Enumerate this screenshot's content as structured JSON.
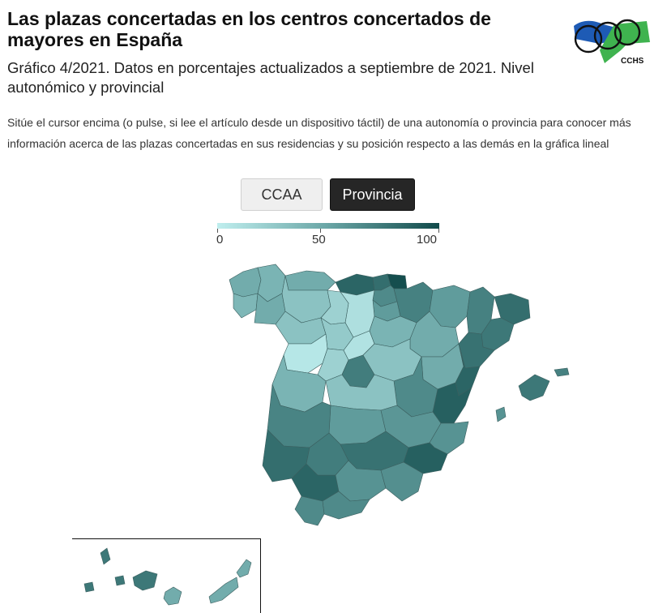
{
  "header": {
    "title": "Las plazas concertadas en los centros concertados de mayores en España",
    "subtitle": "Gráfico 4/2021. Datos en porcentajes actualizados a septiembre de 2021. Nivel autonómico y provincial",
    "description": "Sitúe el cursor encima (o pulse, si lee el artículo desde un dispositivo táctil) de una autonomía o provincia para conocer más información acerca de las plazas concertadas en sus residencias y su posición respecto a las demás en la gráfica lineal"
  },
  "logo": {
    "text": "CCHS",
    "colors": [
      "#1e5bb5",
      "#3fb34f",
      "#111111"
    ]
  },
  "toggle": {
    "options": [
      {
        "label": "CCAA",
        "selected": false
      },
      {
        "label": "Provincia",
        "selected": true
      }
    ]
  },
  "legend": {
    "min": 0,
    "max": 100,
    "ticks": [
      {
        "label": "0",
        "value": 0
      },
      {
        "label": "50",
        "value": 50
      },
      {
        "label": "100",
        "value": 100
      }
    ],
    "color_low": "#bfeeee",
    "color_mid": "#69a5a5",
    "color_high": "#114a4a"
  },
  "map": {
    "stroke_color": "#3b5f5f",
    "regions": [
      {
        "name": "A Coruña",
        "value": 45
      },
      {
        "name": "Lugo",
        "value": 40
      },
      {
        "name": "Pontevedra",
        "value": 38
      },
      {
        "name": "Ourense",
        "value": 45
      },
      {
        "name": "Asturias",
        "value": 45
      },
      {
        "name": "Cantabria",
        "value": 85
      },
      {
        "name": "Vizcaya",
        "value": 80
      },
      {
        "name": "Guipúzcoa",
        "value": 98
      },
      {
        "name": "Álava",
        "value": 65
      },
      {
        "name": "Navarra",
        "value": 70
      },
      {
        "name": "La Rioja",
        "value": 55
      },
      {
        "name": "Burgos",
        "value": 10
      },
      {
        "name": "León",
        "value": 30
      },
      {
        "name": "Palencia",
        "value": 20
      },
      {
        "name": "Zamora",
        "value": 30
      },
      {
        "name": "Valladolid",
        "value": 25
      },
      {
        "name": "Salamanca",
        "value": 5
      },
      {
        "name": "Ávila",
        "value": 20
      },
      {
        "name": "Segovia",
        "value": 8
      },
      {
        "name": "Soria",
        "value": 40
      },
      {
        "name": "Huesca",
        "value": 55
      },
      {
        "name": "Zaragoza",
        "value": 45
      },
      {
        "name": "Teruel",
        "value": 45
      },
      {
        "name": "Lleida",
        "value": 70
      },
      {
        "name": "Girona",
        "value": 80
      },
      {
        "name": "Barcelona",
        "value": 75
      },
      {
        "name": "Tarragona",
        "value": 78
      },
      {
        "name": "Castellón",
        "value": 85
      },
      {
        "name": "Valencia",
        "value": 88
      },
      {
        "name": "Alicante",
        "value": 60
      },
      {
        "name": "Madrid",
        "value": 72
      },
      {
        "name": "Guadalajara",
        "value": 30
      },
      {
        "name": "Cuenca",
        "value": 65
      },
      {
        "name": "Toledo",
        "value": 30
      },
      {
        "name": "Ciudad Real",
        "value": 55
      },
      {
        "name": "Albacete",
        "value": 58
      },
      {
        "name": "Cáceres",
        "value": 40
      },
      {
        "name": "Badajoz",
        "value": 68
      },
      {
        "name": "Murcia",
        "value": 88
      },
      {
        "name": "Huelva",
        "value": 80
      },
      {
        "name": "Sevilla",
        "value": 85
      },
      {
        "name": "Córdoba",
        "value": 72
      },
      {
        "name": "Jaén",
        "value": 78
      },
      {
        "name": "Granada",
        "value": 60
      },
      {
        "name": "Almería",
        "value": 62
      },
      {
        "name": "Málaga",
        "value": 65
      },
      {
        "name": "Cádiz",
        "value": 65
      },
      {
        "name": "Mallorca",
        "value": 75
      },
      {
        "name": "Menorca",
        "value": 70
      },
      {
        "name": "Ibiza",
        "value": 60
      },
      {
        "name": "Santa Cruz de Tenerife",
        "value": 75
      },
      {
        "name": "Las Palmas",
        "value": 45
      }
    ]
  }
}
